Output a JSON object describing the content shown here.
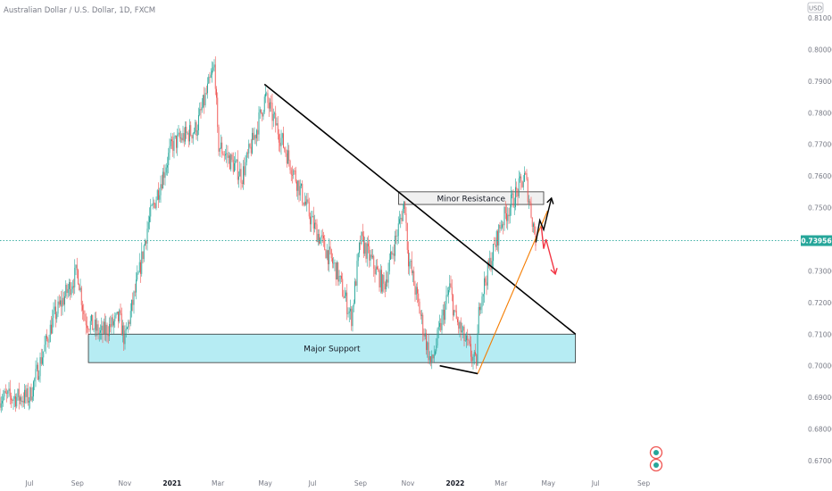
{
  "header": {
    "symbol_title": "Australian Dollar / U.S. Dollar, 1D, FXCM",
    "currency_badge": "USD"
  },
  "chart_data": {
    "type": "candlestick",
    "title": "Australian Dollar / U.S. Dollar, 1D, FXCM",
    "y_unit": "USD",
    "ylim": [
      0.665,
      0.813
    ],
    "y_ticks": [
      "0.81000",
      "0.80000",
      "0.79000",
      "0.78000",
      "0.77000",
      "0.76000",
      "0.75000",
      "0.74000",
      "0.73000",
      "0.72000",
      "0.71000",
      "0.70000",
      "0.69000",
      "0.68000",
      "0.67000"
    ],
    "x_ticks": [
      "Jul",
      "Sep",
      "Nov",
      "2021",
      "Mar",
      "May",
      "Jul",
      "Sep",
      "Nov",
      "2022",
      "Mar",
      "May",
      "Jul",
      "Sep"
    ],
    "last_price": "0.73956",
    "grid": false,
    "price_path": [
      {
        "t": "2020-07",
        "p": 0.69
      },
      {
        "t": "2020-08",
        "p": 0.715
      },
      {
        "t": "2020-09",
        "p": 0.73
      },
      {
        "t": "2020-09-10",
        "p": 0.715
      },
      {
        "t": "2020-10",
        "p": 0.71
      },
      {
        "t": "2020-10-25",
        "p": 0.715
      },
      {
        "t": "2020-11",
        "p": 0.708
      },
      {
        "t": "2020-11-20",
        "p": 0.73
      },
      {
        "t": "2020-12",
        "p": 0.745
      },
      {
        "t": "2021-01",
        "p": 0.77
      },
      {
        "t": "2021-02",
        "p": 0.775
      },
      {
        "t": "2021-02-25",
        "p": 0.795
      },
      {
        "t": "2021-03",
        "p": 0.77
      },
      {
        "t": "2021-04",
        "p": 0.76
      },
      {
        "t": "2021-04-20",
        "p": 0.775
      },
      {
        "t": "2021-05",
        "p": 0.785
      },
      {
        "t": "2021-06",
        "p": 0.765
      },
      {
        "t": "2021-07",
        "p": 0.745
      },
      {
        "t": "2021-08",
        "p": 0.73
      },
      {
        "t": "2021-08-20",
        "p": 0.715
      },
      {
        "t": "2021-09",
        "p": 0.74
      },
      {
        "t": "2021-10",
        "p": 0.725
      },
      {
        "t": "2021-10-28",
        "p": 0.752
      },
      {
        "t": "2021-11",
        "p": 0.735
      },
      {
        "t": "2021-12",
        "p": 0.7
      },
      {
        "t": "2021-12-25",
        "p": 0.725
      },
      {
        "t": "2022-01",
        "p": 0.715
      },
      {
        "t": "2022-01-28",
        "p": 0.7
      },
      {
        "t": "2022-02",
        "p": 0.72
      },
      {
        "t": "2022-03",
        "p": 0.745
      },
      {
        "t": "2022-04",
        "p": 0.76
      },
      {
        "t": "2022-04-15",
        "p": 0.7396
      }
    ],
    "annotations": [
      {
        "type": "zone",
        "label": "Minor Resistance",
        "y": [
          0.751,
          0.755
        ],
        "x": [
          "2021-10-20",
          "2022-04-25"
        ]
      },
      {
        "type": "zone",
        "label": "Major Support",
        "y": [
          0.701,
          0.71
        ],
        "x": [
          "2020-09-15",
          "2022-06-05"
        ]
      },
      {
        "type": "trendline",
        "color": "#000000",
        "from": {
          "t": "2021-04-30",
          "p": 0.789
        },
        "to": {
          "t": "2022-06-05",
          "p": 0.71
        }
      },
      {
        "type": "trendline",
        "color": "#f57c00",
        "from": {
          "t": "2022-01-30",
          "p": 0.6975
        },
        "to": {
          "t": "2022-04-30",
          "p": 0.749
        }
      },
      {
        "type": "horizontal_segment",
        "color": "#000000",
        "from": {
          "t": "2021-12-12",
          "p": 0.7
        },
        "to": {
          "t": "2022-01-30",
          "p": 0.6975
        }
      },
      {
        "type": "scenario_arrow",
        "color": "#000000",
        "direction": "up",
        "path": [
          {
            "t": "2022-04-15",
            "p": 0.739
          },
          {
            "t": "2022-04-20",
            "p": 0.746
          },
          {
            "t": "2022-04-25",
            "p": 0.743
          },
          {
            "t": "2022-05-05",
            "p": 0.753
          }
        ]
      },
      {
        "type": "scenario_arrow",
        "color": "#f23645",
        "direction": "down",
        "path": [
          {
            "t": "2022-04-22",
            "p": 0.744
          },
          {
            "t": "2022-04-25",
            "p": 0.737
          },
          {
            "t": "2022-04-28",
            "p": 0.74
          },
          {
            "t": "2022-05-10",
            "p": 0.729
          }
        ]
      }
    ]
  },
  "colors": {
    "bull": "#26a69a",
    "bear": "#ef5350",
    "resistance_fill": "#eeeeee",
    "support_fill": "#b2ebf2",
    "last_price_line": "#26a69a",
    "axis_text": "#787b86"
  }
}
